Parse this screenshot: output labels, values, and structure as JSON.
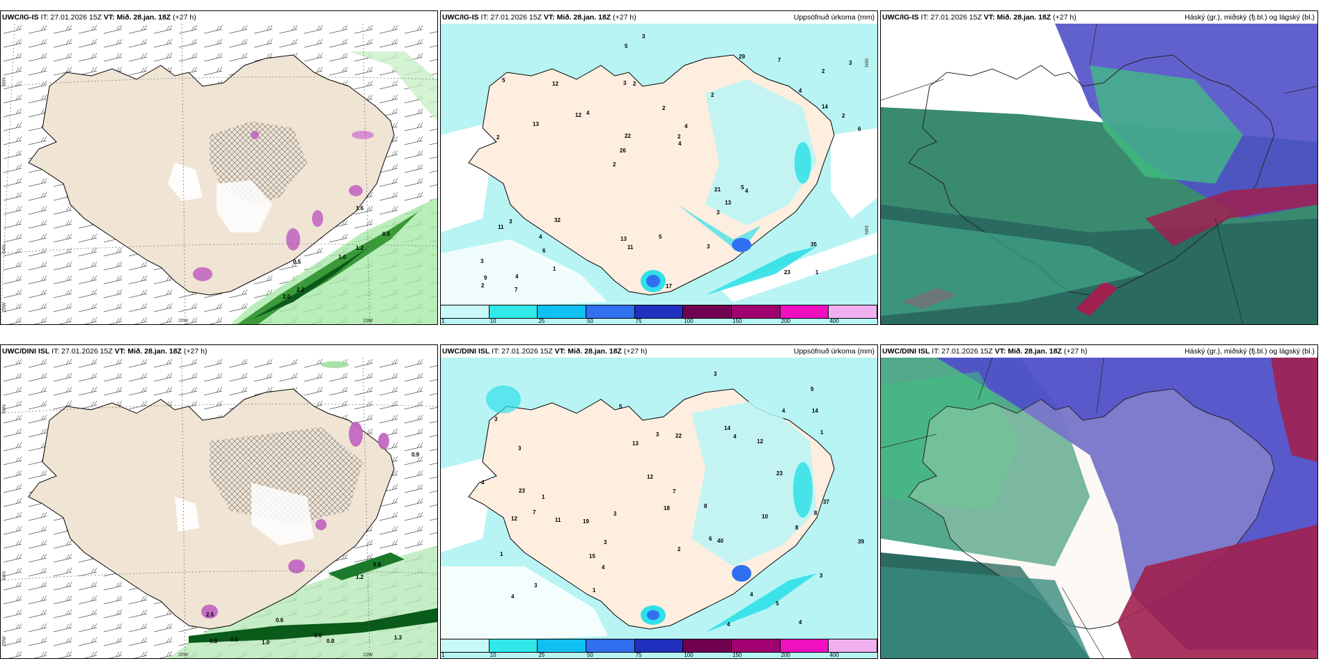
{
  "panels": [
    {
      "model": "UWC/IG-IS",
      "it": "IT: 27.01.2026 15Z",
      "vt": "VT: Mið. 28.jan. 18Z",
      "lead": "(+27 h)",
      "title_right": "",
      "lat_labels": [
        "66N",
        "64N"
      ],
      "lon_labels": [
        "20W",
        "15W"
      ],
      "lon_left": "25W",
      "contour_labels": [
        "0.5",
        "1.2",
        "2.2",
        "2.0",
        "0.5",
        "1.6",
        "1.0"
      ]
    },
    {
      "model": "UWC/IG-IS",
      "it": "IT: 27.01.2026 15Z",
      "vt": "VT: Mið. 28.jan. 18Z",
      "lead": "(+27 h)",
      "title_right": "Uppsöfnuð úrkoma (mm)",
      "lat_labels": [
        "66N",
        "64N"
      ],
      "precip_values": [
        "1",
        "2",
        "2",
        "2",
        "2",
        "4",
        "3",
        "2",
        "3",
        "4",
        "3",
        "6",
        "2",
        "4",
        "4",
        "5",
        "5",
        "6",
        "21",
        "14",
        "26",
        "13",
        "22",
        "12",
        "29",
        "32",
        "23",
        "35",
        "5",
        "17",
        "12",
        "13",
        "3",
        "1",
        "2",
        "2",
        "9",
        "11",
        "4",
        "11",
        "4",
        "3",
        "13",
        "3",
        "4",
        "7",
        "2",
        "5",
        "7",
        "3"
      ]
    },
    {
      "model": "UWC/IG-IS",
      "it": "IT: 27.01.2026 15Z",
      "vt": "VT: Mið. 28.jan. 18Z",
      "lead": "(+27 h)",
      "title_right": "Háský (gr.), miðský (fj.bl.) og lágský (bl.)"
    },
    {
      "model": "UWC/DINI ISL",
      "it": "IT: 27.01.2026 15Z",
      "vt": "VT: Mið. 28.jan. 18Z",
      "lead": "(+27 h)",
      "title_right": "",
      "lat_labels": [
        "66N",
        "64N"
      ],
      "lon_labels": [
        "20W",
        "15W"
      ],
      "lon_left": "25W",
      "contour_labels": [
        "0.6",
        "0.9",
        "1.2",
        "0.5",
        "0.8",
        "1.0",
        "0.6",
        "0.8",
        "2.5",
        "0.9",
        "1.3"
      ]
    },
    {
      "model": "UWC/DINI ISL",
      "it": "IT: 27.01.2026 15Z",
      "vt": "VT: Mið. 28.jan. 18Z",
      "lead": "(+27 h)",
      "title_right": "Uppsöfnuð úrkoma (mm)",
      "lat_labels": [
        "66N",
        "64N"
      ],
      "precip_values": [
        "4",
        "7",
        "6",
        "3",
        "3",
        "3",
        "3",
        "19",
        "12",
        "3",
        "4",
        "5",
        "4",
        "5",
        "8",
        "1",
        "10",
        "7",
        "4",
        "4",
        "9",
        "22",
        "23",
        "39",
        "37",
        "23",
        "11",
        "18",
        "12",
        "14",
        "40",
        "12",
        "15",
        "14",
        "13",
        "8",
        "8",
        "4",
        "4",
        "4",
        "3",
        "2",
        "1",
        "3",
        "3",
        "1",
        "1"
      ]
    },
    {
      "model": "UWC/DINI ISL",
      "it": "IT: 27.01.2026 15Z",
      "vt": "VT: Mið. 28.jan. 18Z",
      "lead": "(+27 h)",
      "title_right": "Háský (gr.), miðský (fj.bl.) og lágský (bl.)"
    }
  ],
  "legend": {
    "colors": [
      "#c8f8f8",
      "#30e8e8",
      "#10c0f0",
      "#3070f0",
      "#2030c0",
      "#700050",
      "#a00070",
      "#f010c0",
      "#f0b0f0"
    ],
    "ticks": [
      "1",
      "10",
      "25",
      "50",
      "75",
      "100",
      "150",
      "200",
      "400"
    ]
  },
  "colors": {
    "land": "#f5e8d8",
    "land_ig": "#f0e4d4",
    "sea": "#ffffff",
    "precip_green": "#90e090",
    "precip_dark": "#107010",
    "snow_purple": "#c060c0",
    "cloud_high": "#40c080",
    "cloud_mid": "#5050d0",
    "cloud_low": "#2a6a60",
    "cloud_red": "#a02050"
  }
}
